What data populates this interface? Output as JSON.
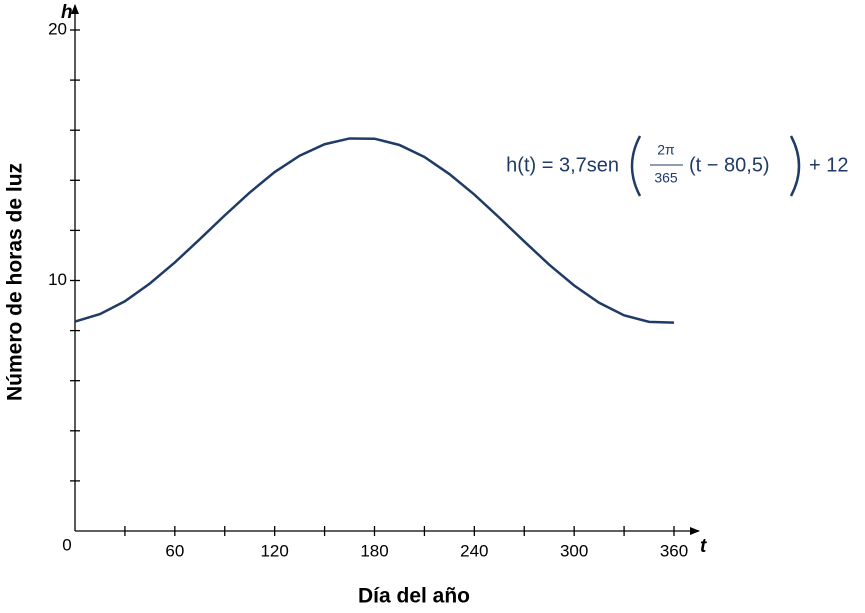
{
  "chart_data": {
    "type": "line",
    "x_label": "Día del año",
    "y_label": "Número de horas de luz",
    "x_axis_letter": "t",
    "y_axis_letter": "h",
    "origin_label": "0",
    "annotation": {
      "prefix": "h(t) = 3,7sen",
      "numerator": "2π",
      "denominator": "365",
      "inner": "(t − 80,5)",
      "suffix": "+ 12"
    },
    "x": [
      0,
      15,
      30,
      45,
      60,
      75,
      90,
      105,
      120,
      135,
      150,
      165,
      180,
      195,
      210,
      225,
      240,
      255,
      270,
      285,
      300,
      315,
      330,
      345,
      360
    ],
    "series": [
      {
        "color": "#1f3b66",
        "values": [
          8.36,
          8.66,
          9.17,
          9.88,
          10.72,
          11.65,
          12.6,
          13.51,
          14.33,
          14.98,
          15.44,
          15.67,
          15.66,
          15.41,
          14.93,
          14.25,
          13.43,
          12.51,
          11.56,
          10.63,
          9.8,
          9.11,
          8.61,
          8.35,
          8.32
        ]
      }
    ],
    "xlim": [
      0,
      375
    ],
    "ylim": [
      0,
      21
    ],
    "xticks": [
      60,
      120,
      180,
      240,
      300,
      360
    ],
    "minor_xticks": [
      30,
      90,
      150,
      210,
      270,
      330
    ],
    "yticks": [
      10,
      20
    ],
    "minor_yticks": [
      2,
      4,
      6,
      8,
      12,
      14,
      16,
      18
    ]
  }
}
